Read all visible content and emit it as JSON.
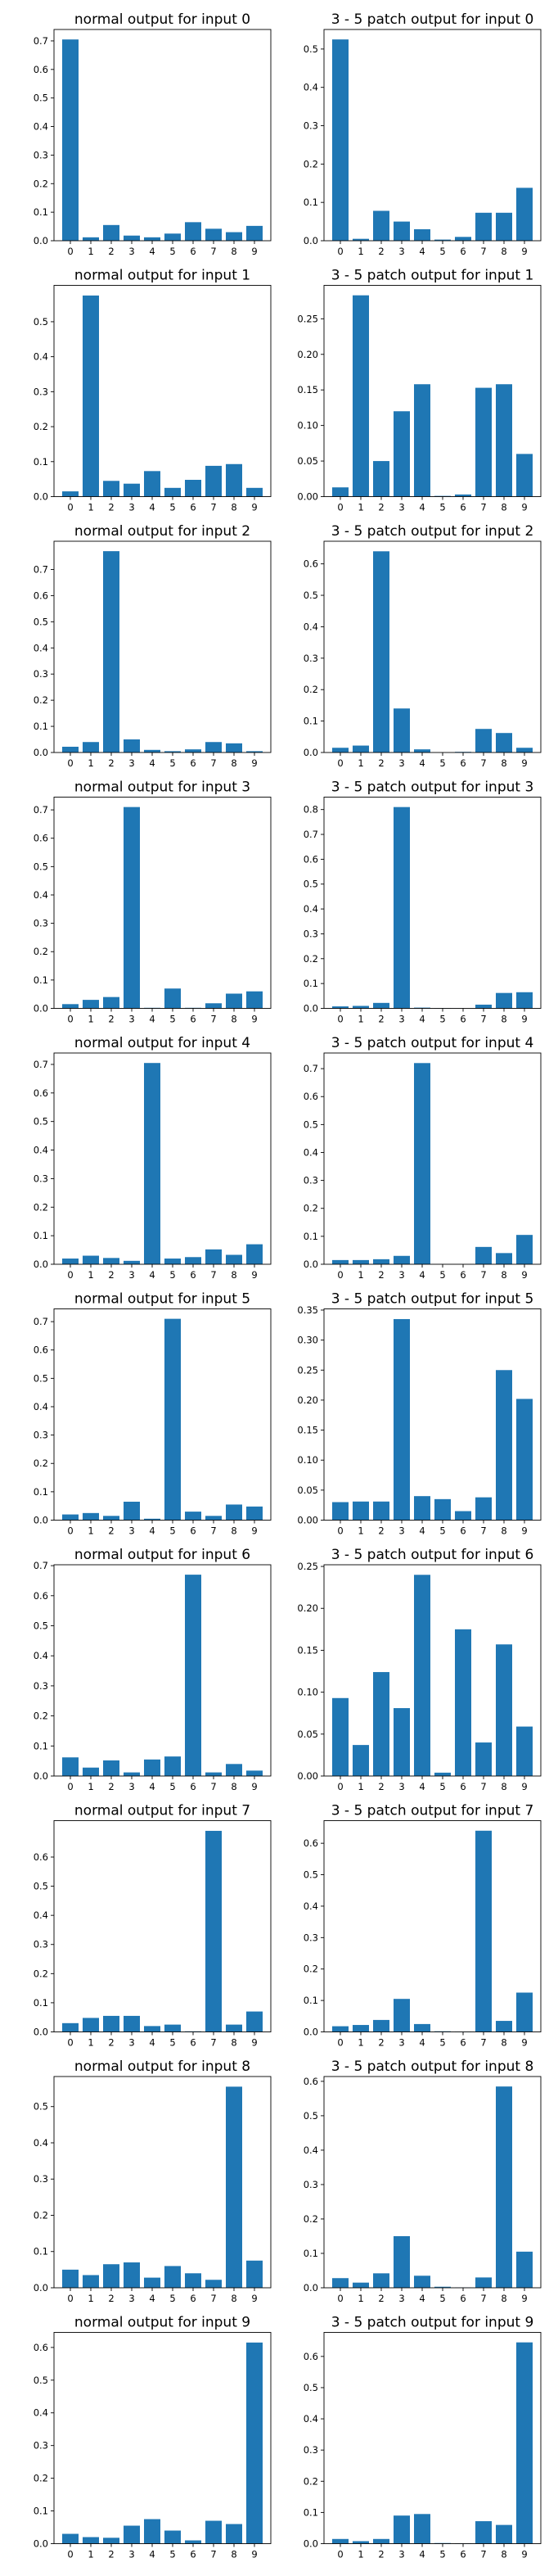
{
  "figure": {
    "rows": 10,
    "cols": 2,
    "bar_color": "#1f77b4"
  },
  "chart_data": [
    {
      "type": "bar",
      "title": "normal output for input 0",
      "categories": [
        "0",
        "1",
        "2",
        "3",
        "4",
        "5",
        "6",
        "7",
        "8",
        "9"
      ],
      "values": [
        0.705,
        0.012,
        0.055,
        0.018,
        0.012,
        0.025,
        0.065,
        0.042,
        0.03,
        0.052
      ],
      "yticks": [
        0.0,
        0.1,
        0.2,
        0.3,
        0.4,
        0.5,
        0.6,
        0.7
      ],
      "yticklabels": [
        "0.0",
        "0.1",
        "0.2",
        "0.3",
        "0.4",
        "0.5",
        "0.6",
        "0.7"
      ],
      "ylim": [
        0,
        0.74
      ]
    },
    {
      "type": "bar",
      "title": "3 - 5 patch output for input 0",
      "categories": [
        "0",
        "1",
        "2",
        "3",
        "4",
        "5",
        "6",
        "7",
        "8",
        "9"
      ],
      "values": [
        0.525,
        0.005,
        0.078,
        0.05,
        0.03,
        0.003,
        0.01,
        0.073,
        0.073,
        0.138
      ],
      "yticks": [
        0.0,
        0.1,
        0.2,
        0.3,
        0.4,
        0.5
      ],
      "yticklabels": [
        "0.0",
        "0.1",
        "0.2",
        "0.3",
        "0.4",
        "0.5"
      ],
      "ylim": [
        0,
        0.551
      ]
    },
    {
      "type": "bar",
      "title": "normal output for input 1",
      "categories": [
        "0",
        "1",
        "2",
        "3",
        "4",
        "5",
        "6",
        "7",
        "8",
        "9"
      ],
      "values": [
        0.015,
        0.575,
        0.045,
        0.037,
        0.073,
        0.025,
        0.048,
        0.088,
        0.093,
        0.025
      ],
      "yticks": [
        0.0,
        0.1,
        0.2,
        0.3,
        0.4,
        0.5
      ],
      "yticklabels": [
        "0.0",
        "0.1",
        "0.2",
        "0.3",
        "0.4",
        "0.5"
      ],
      "ylim": [
        0,
        0.604
      ]
    },
    {
      "type": "bar",
      "title": "3 - 5 patch output for input 1",
      "categories": [
        "0",
        "1",
        "2",
        "3",
        "4",
        "5",
        "6",
        "7",
        "8",
        "9"
      ],
      "values": [
        0.013,
        0.283,
        0.05,
        0.12,
        0.158,
        0.001,
        0.003,
        0.153,
        0.158,
        0.06
      ],
      "yticks": [
        0.0,
        0.05,
        0.1,
        0.15,
        0.2,
        0.25
      ],
      "yticklabels": [
        "0.00",
        "0.05",
        "0.10",
        "0.15",
        "0.20",
        "0.25"
      ],
      "ylim": [
        0,
        0.297
      ]
    },
    {
      "type": "bar",
      "title": "normal output for input 2",
      "categories": [
        "0",
        "1",
        "2",
        "3",
        "4",
        "5",
        "6",
        "7",
        "8",
        "9"
      ],
      "values": [
        0.022,
        0.04,
        0.77,
        0.05,
        0.01,
        0.005,
        0.012,
        0.04,
        0.035,
        0.005
      ],
      "yticks": [
        0.0,
        0.1,
        0.2,
        0.3,
        0.4,
        0.5,
        0.6,
        0.7
      ],
      "yticklabels": [
        "0.0",
        "0.1",
        "0.2",
        "0.3",
        "0.4",
        "0.5",
        "0.6",
        "0.7"
      ],
      "ylim": [
        0,
        0.808
      ]
    },
    {
      "type": "bar",
      "title": "3 - 5 patch output for input 2",
      "categories": [
        "0",
        "1",
        "2",
        "3",
        "4",
        "5",
        "6",
        "7",
        "8",
        "9"
      ],
      "values": [
        0.015,
        0.022,
        0.64,
        0.14,
        0.01,
        0.0,
        0.002,
        0.075,
        0.062,
        0.015
      ],
      "yticks": [
        0.0,
        0.1,
        0.2,
        0.3,
        0.4,
        0.5,
        0.6
      ],
      "yticklabels": [
        "0.0",
        "0.1",
        "0.2",
        "0.3",
        "0.4",
        "0.5",
        "0.6"
      ],
      "ylim": [
        0,
        0.672
      ]
    },
    {
      "type": "bar",
      "title": "normal output for input 3",
      "categories": [
        "0",
        "1",
        "2",
        "3",
        "4",
        "5",
        "6",
        "7",
        "8",
        "9"
      ],
      "values": [
        0.015,
        0.03,
        0.04,
        0.71,
        0.002,
        0.07,
        0.002,
        0.018,
        0.052,
        0.06
      ],
      "yticks": [
        0.0,
        0.1,
        0.2,
        0.3,
        0.4,
        0.5,
        0.6,
        0.7
      ],
      "yticklabels": [
        "0.0",
        "0.1",
        "0.2",
        "0.3",
        "0.4",
        "0.5",
        "0.6",
        "0.7"
      ],
      "ylim": [
        0,
        0.745
      ]
    },
    {
      "type": "bar",
      "title": "3 - 5 patch output for input 3",
      "categories": [
        "0",
        "1",
        "2",
        "3",
        "4",
        "5",
        "6",
        "7",
        "8",
        "9"
      ],
      "values": [
        0.008,
        0.01,
        0.022,
        0.81,
        0.003,
        0.001,
        0.0,
        0.015,
        0.062,
        0.065
      ],
      "yticks": [
        0.0,
        0.1,
        0.2,
        0.3,
        0.4,
        0.5,
        0.6,
        0.7,
        0.8
      ],
      "yticklabels": [
        "0.0",
        "0.1",
        "0.2",
        "0.3",
        "0.4",
        "0.5",
        "0.6",
        "0.7",
        "0.8"
      ],
      "ylim": [
        0,
        0.85
      ]
    },
    {
      "type": "bar",
      "title": "normal output for input 4",
      "categories": [
        "0",
        "1",
        "2",
        "3",
        "4",
        "5",
        "6",
        "7",
        "8",
        "9"
      ],
      "values": [
        0.02,
        0.03,
        0.022,
        0.012,
        0.705,
        0.02,
        0.025,
        0.052,
        0.033,
        0.07
      ],
      "yticks": [
        0.0,
        0.1,
        0.2,
        0.3,
        0.4,
        0.5,
        0.6,
        0.7
      ],
      "yticklabels": [
        "0.0",
        "0.1",
        "0.2",
        "0.3",
        "0.4",
        "0.5",
        "0.6",
        "0.7"
      ],
      "ylim": [
        0,
        0.74
      ]
    },
    {
      "type": "bar",
      "title": "3 - 5 patch output for input 4",
      "categories": [
        "0",
        "1",
        "2",
        "3",
        "4",
        "5",
        "6",
        "7",
        "8",
        "9"
      ],
      "values": [
        0.015,
        0.015,
        0.018,
        0.03,
        0.72,
        0.0,
        0.0,
        0.062,
        0.04,
        0.105
      ],
      "yticks": [
        0.0,
        0.1,
        0.2,
        0.3,
        0.4,
        0.5,
        0.6,
        0.7
      ],
      "yticklabels": [
        "0.0",
        "0.1",
        "0.2",
        "0.3",
        "0.4",
        "0.5",
        "0.6",
        "0.7"
      ],
      "ylim": [
        0,
        0.756
      ]
    },
    {
      "type": "bar",
      "title": "normal output for input 5",
      "categories": [
        "0",
        "1",
        "2",
        "3",
        "4",
        "5",
        "6",
        "7",
        "8",
        "9"
      ],
      "values": [
        0.02,
        0.025,
        0.015,
        0.065,
        0.005,
        0.71,
        0.03,
        0.015,
        0.055,
        0.048
      ],
      "yticks": [
        0.0,
        0.1,
        0.2,
        0.3,
        0.4,
        0.5,
        0.6,
        0.7
      ],
      "yticklabels": [
        "0.0",
        "0.1",
        "0.2",
        "0.3",
        "0.4",
        "0.5",
        "0.6",
        "0.7"
      ],
      "ylim": [
        0,
        0.745
      ]
    },
    {
      "type": "bar",
      "title": "3 - 5 patch output for input 5",
      "categories": [
        "0",
        "1",
        "2",
        "3",
        "4",
        "5",
        "6",
        "7",
        "8",
        "9"
      ],
      "values": [
        0.03,
        0.031,
        0.031,
        0.335,
        0.04,
        0.035,
        0.015,
        0.038,
        0.25,
        0.202
      ],
      "yticks": [
        0.0,
        0.05,
        0.1,
        0.15,
        0.2,
        0.25,
        0.3,
        0.35
      ],
      "yticklabels": [
        "0.00",
        "0.05",
        "0.10",
        "0.15",
        "0.20",
        "0.25",
        "0.30",
        "0.35"
      ],
      "ylim": [
        0,
        0.352
      ]
    },
    {
      "type": "bar",
      "title": "normal output for input 6",
      "categories": [
        "0",
        "1",
        "2",
        "3",
        "4",
        "5",
        "6",
        "7",
        "8",
        "9"
      ],
      "values": [
        0.062,
        0.028,
        0.052,
        0.012,
        0.055,
        0.065,
        0.67,
        0.012,
        0.04,
        0.018
      ],
      "yticks": [
        0.0,
        0.1,
        0.2,
        0.3,
        0.4,
        0.5,
        0.6,
        0.7
      ],
      "yticklabels": [
        "0.0",
        "0.1",
        "0.2",
        "0.3",
        "0.4",
        "0.5",
        "0.6",
        "0.7"
      ],
      "ylim": [
        0,
        0.703
      ]
    },
    {
      "type": "bar",
      "title": "3 - 5 patch output for input 6",
      "categories": [
        "0",
        "1",
        "2",
        "3",
        "4",
        "5",
        "6",
        "7",
        "8",
        "9"
      ],
      "values": [
        0.093,
        0.037,
        0.124,
        0.081,
        0.24,
        0.004,
        0.175,
        0.04,
        0.157,
        0.059
      ],
      "yticks": [
        0.0,
        0.05,
        0.1,
        0.15,
        0.2,
        0.25
      ],
      "yticklabels": [
        "0.00",
        "0.05",
        "0.10",
        "0.15",
        "0.20",
        "0.25"
      ],
      "ylim": [
        0,
        0.252
      ]
    },
    {
      "type": "bar",
      "title": "normal output for input 7",
      "categories": [
        "0",
        "1",
        "2",
        "3",
        "4",
        "5",
        "6",
        "7",
        "8",
        "9"
      ],
      "values": [
        0.03,
        0.048,
        0.055,
        0.055,
        0.02,
        0.025,
        0.002,
        0.69,
        0.025,
        0.07
      ],
      "yticks": [
        0.0,
        0.1,
        0.2,
        0.3,
        0.4,
        0.5,
        0.6
      ],
      "yticklabels": [
        "0.0",
        "0.1",
        "0.2",
        "0.3",
        "0.4",
        "0.5",
        "0.6"
      ],
      "ylim": [
        0,
        0.725
      ]
    },
    {
      "type": "bar",
      "title": "3 - 5 patch output for input 7",
      "categories": [
        "0",
        "1",
        "2",
        "3",
        "4",
        "5",
        "6",
        "7",
        "8",
        "9"
      ],
      "values": [
        0.018,
        0.022,
        0.038,
        0.105,
        0.025,
        0.002,
        0.001,
        0.64,
        0.035,
        0.125
      ],
      "yticks": [
        0.0,
        0.1,
        0.2,
        0.3,
        0.4,
        0.5,
        0.6
      ],
      "yticklabels": [
        "0.0",
        "0.1",
        "0.2",
        "0.3",
        "0.4",
        "0.5",
        "0.6"
      ],
      "ylim": [
        0,
        0.672
      ]
    },
    {
      "type": "bar",
      "title": "normal output for input 8",
      "categories": [
        "0",
        "1",
        "2",
        "3",
        "4",
        "5",
        "6",
        "7",
        "8",
        "9"
      ],
      "values": [
        0.05,
        0.035,
        0.065,
        0.07,
        0.028,
        0.06,
        0.04,
        0.022,
        0.555,
        0.075
      ],
      "yticks": [
        0.0,
        0.1,
        0.2,
        0.3,
        0.4,
        0.5
      ],
      "yticklabels": [
        "0.0",
        "0.1",
        "0.2",
        "0.3",
        "0.4",
        "0.5"
      ],
      "ylim": [
        0,
        0.583
      ]
    },
    {
      "type": "bar",
      "title": "3 - 5 patch output for input 8",
      "categories": [
        "0",
        "1",
        "2",
        "3",
        "4",
        "5",
        "6",
        "7",
        "8",
        "9"
      ],
      "values": [
        0.028,
        0.015,
        0.042,
        0.15,
        0.035,
        0.003,
        0.001,
        0.03,
        0.585,
        0.105
      ],
      "yticks": [
        0.0,
        0.1,
        0.2,
        0.3,
        0.4,
        0.5,
        0.6
      ],
      "yticklabels": [
        "0.0",
        "0.1",
        "0.2",
        "0.3",
        "0.4",
        "0.5",
        "0.6"
      ],
      "ylim": [
        0,
        0.614
      ]
    },
    {
      "type": "bar",
      "title": "normal output for input 9",
      "categories": [
        "0",
        "1",
        "2",
        "3",
        "4",
        "5",
        "6",
        "7",
        "8",
        "9"
      ],
      "values": [
        0.03,
        0.02,
        0.018,
        0.055,
        0.075,
        0.04,
        0.01,
        0.07,
        0.06,
        0.615
      ],
      "yticks": [
        0.0,
        0.1,
        0.2,
        0.3,
        0.4,
        0.5,
        0.6
      ],
      "yticklabels": [
        "0.0",
        "0.1",
        "0.2",
        "0.3",
        "0.4",
        "0.5",
        "0.6"
      ],
      "ylim": [
        0,
        0.646
      ]
    },
    {
      "type": "bar",
      "title": "3 - 5 patch output for input 9",
      "categories": [
        "0",
        "1",
        "2",
        "3",
        "4",
        "5",
        "6",
        "7",
        "8",
        "9"
      ],
      "values": [
        0.015,
        0.008,
        0.015,
        0.09,
        0.095,
        0.002,
        0.001,
        0.072,
        0.06,
        0.645
      ],
      "yticks": [
        0.0,
        0.1,
        0.2,
        0.3,
        0.4,
        0.5,
        0.6
      ],
      "yticklabels": [
        "0.0",
        "0.1",
        "0.2",
        "0.3",
        "0.4",
        "0.5",
        "0.6"
      ],
      "ylim": [
        0,
        0.677
      ]
    }
  ]
}
